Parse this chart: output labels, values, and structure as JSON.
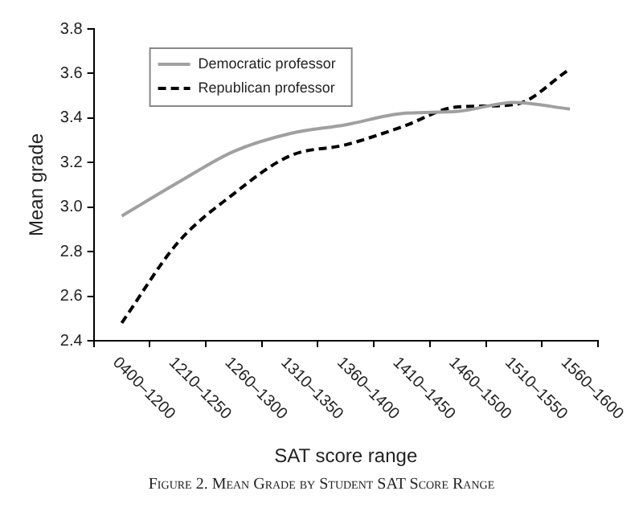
{
  "chart_data": {
    "type": "line",
    "xlabel": "SAT score range",
    "ylabel": "Mean grade",
    "annotations": [
      "Figure 2. Mean Grade by Student SAT Score Range"
    ],
    "categories": [
      "0400–1200",
      "1210–1250",
      "1260–1300",
      "1310–1350",
      "1360–1400",
      "1410–1450",
      "1460–1500",
      "1510–1550",
      "1560–1600"
    ],
    "series": [
      {
        "name": "Democratic professor",
        "color": "#a0a0a0",
        "line_style": "solid",
        "values": [
          2.96,
          3.11,
          3.25,
          3.33,
          3.37,
          3.42,
          3.43,
          3.47,
          3.44
        ]
      },
      {
        "name": "Republican professor",
        "color": "#000000",
        "line_style": "dashed",
        "values": [
          2.48,
          2.84,
          3.06,
          3.23,
          3.28,
          3.36,
          3.45,
          3.46,
          3.62
        ]
      }
    ],
    "ylim": [
      2.4,
      3.8
    ],
    "yticks": [
      2.4,
      2.6,
      2.8,
      {
        "value": 3,
        "label": "3.0"
      },
      3.2,
      3.4,
      3.6,
      3.8
    ],
    "grid": false,
    "legend": "top left",
    "marker": "none"
  }
}
